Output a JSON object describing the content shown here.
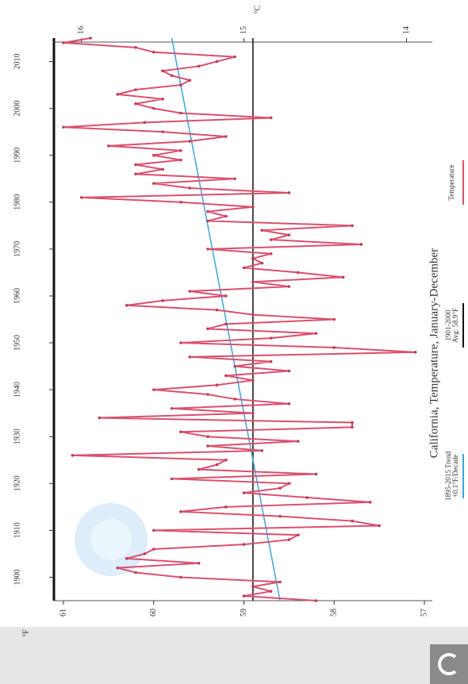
{
  "chart_data": {
    "type": "line",
    "title": "California, Temperature, January-December",
    "ylabel": "°F",
    "y2label": "°C",
    "x": [
      1895,
      1896,
      1897,
      1898,
      1899,
      1900,
      1901,
      1902,
      1903,
      1904,
      1905,
      1906,
      1907,
      1908,
      1909,
      1910,
      1911,
      1912,
      1913,
      1914,
      1915,
      1916,
      1917,
      1918,
      1919,
      1920,
      1921,
      1922,
      1923,
      1924,
      1925,
      1926,
      1927,
      1928,
      1929,
      1930,
      1931,
      1932,
      1933,
      1934,
      1935,
      1936,
      1937,
      1938,
      1939,
      1940,
      1941,
      1942,
      1943,
      1944,
      1945,
      1946,
      1947,
      1948,
      1949,
      1950,
      1951,
      1952,
      1953,
      1954,
      1955,
      1956,
      1957,
      1958,
      1959,
      1960,
      1961,
      1962,
      1963,
      1964,
      1965,
      1966,
      1967,
      1968,
      1969,
      1970,
      1971,
      1972,
      1973,
      1974,
      1975,
      1976,
      1977,
      1978,
      1979,
      1980,
      1981,
      1982,
      1983,
      1984,
      1985,
      1986,
      1987,
      1988,
      1989,
      1990,
      1991,
      1992,
      1993,
      1994,
      1995,
      1996,
      1997,
      1998,
      1999,
      2000,
      2001,
      2002,
      2003,
      2004,
      2005,
      2006,
      2007,
      2008,
      2009,
      2010,
      2011,
      2012,
      2013,
      2014,
      2015
    ],
    "series": [
      {
        "name": "Temperature",
        "color": "#d9506e",
        "values": [
          58.2,
          59.0,
          58.7,
          58.9,
          58.6,
          59.7,
          60.2,
          60.4,
          59.5,
          60.3,
          60.1,
          60.0,
          59.0,
          58.5,
          58.4,
          60.0,
          57.5,
          57.8,
          58.6,
          59.7,
          59.2,
          57.6,
          58.3,
          59.0,
          58.6,
          58.5,
          59.8,
          58.2,
          59.5,
          59.3,
          59.2,
          60.9,
          58.8,
          59.4,
          58.4,
          59.4,
          59.7,
          57.8,
          57.8,
          60.6,
          58.9,
          59.8,
          58.5,
          59.1,
          59.4,
          60.0,
          59.3,
          58.9,
          59.2,
          58.5,
          59.1,
          58.7,
          59.6,
          57.1,
          58.0,
          59.7,
          58.7,
          58.2,
          59.4,
          59.2,
          58.0,
          58.9,
          59.3,
          60.3,
          59.9,
          59.2,
          59.6,
          58.5,
          58.9,
          57.9,
          58.4,
          59.0,
          58.8,
          58.9,
          58.7,
          59.4,
          57.7,
          58.7,
          58.5,
          58.8,
          57.8,
          59.4,
          59.2,
          59.4,
          58.9,
          59.7,
          60.8,
          58.5,
          59.6,
          60.0,
          59.1,
          60.2,
          59.9,
          60.2,
          59.7,
          60.0,
          59.7,
          60.5,
          59.6,
          59.2,
          59.9,
          61.0,
          60.1,
          58.7,
          59.7,
          60.0,
          60.2,
          59.9,
          60.4,
          60.2,
          59.7,
          59.6,
          59.8,
          59.9,
          59.5,
          59.3,
          59.1,
          60.0,
          60.2,
          61.0,
          60.7
        ]
      },
      {
        "name": "1895-2015 Trend",
        "subname": "+0.1°F/Decade",
        "color": "#3aa6dd",
        "x": [
          1895,
          2015
        ],
        "values": [
          58.6,
          59.8
        ]
      },
      {
        "name": "1901-2000",
        "subname": "Avg: 58.9°F",
        "color": "#111111",
        "x": [
          1895,
          2015
        ],
        "values": [
          58.9,
          58.9
        ]
      }
    ],
    "xlim": [
      1895,
      2015
    ],
    "xticks": [
      1900,
      1910,
      1920,
      1930,
      1940,
      1950,
      1960,
      1970,
      1980,
      1990,
      2000,
      2010
    ],
    "ylim": [
      57,
      61
    ],
    "yticks": [
      57,
      58,
      59,
      60,
      61
    ],
    "y2lim": [
      13.89,
      16.11
    ],
    "y2ticks": [
      14,
      15,
      16
    ]
  }
}
